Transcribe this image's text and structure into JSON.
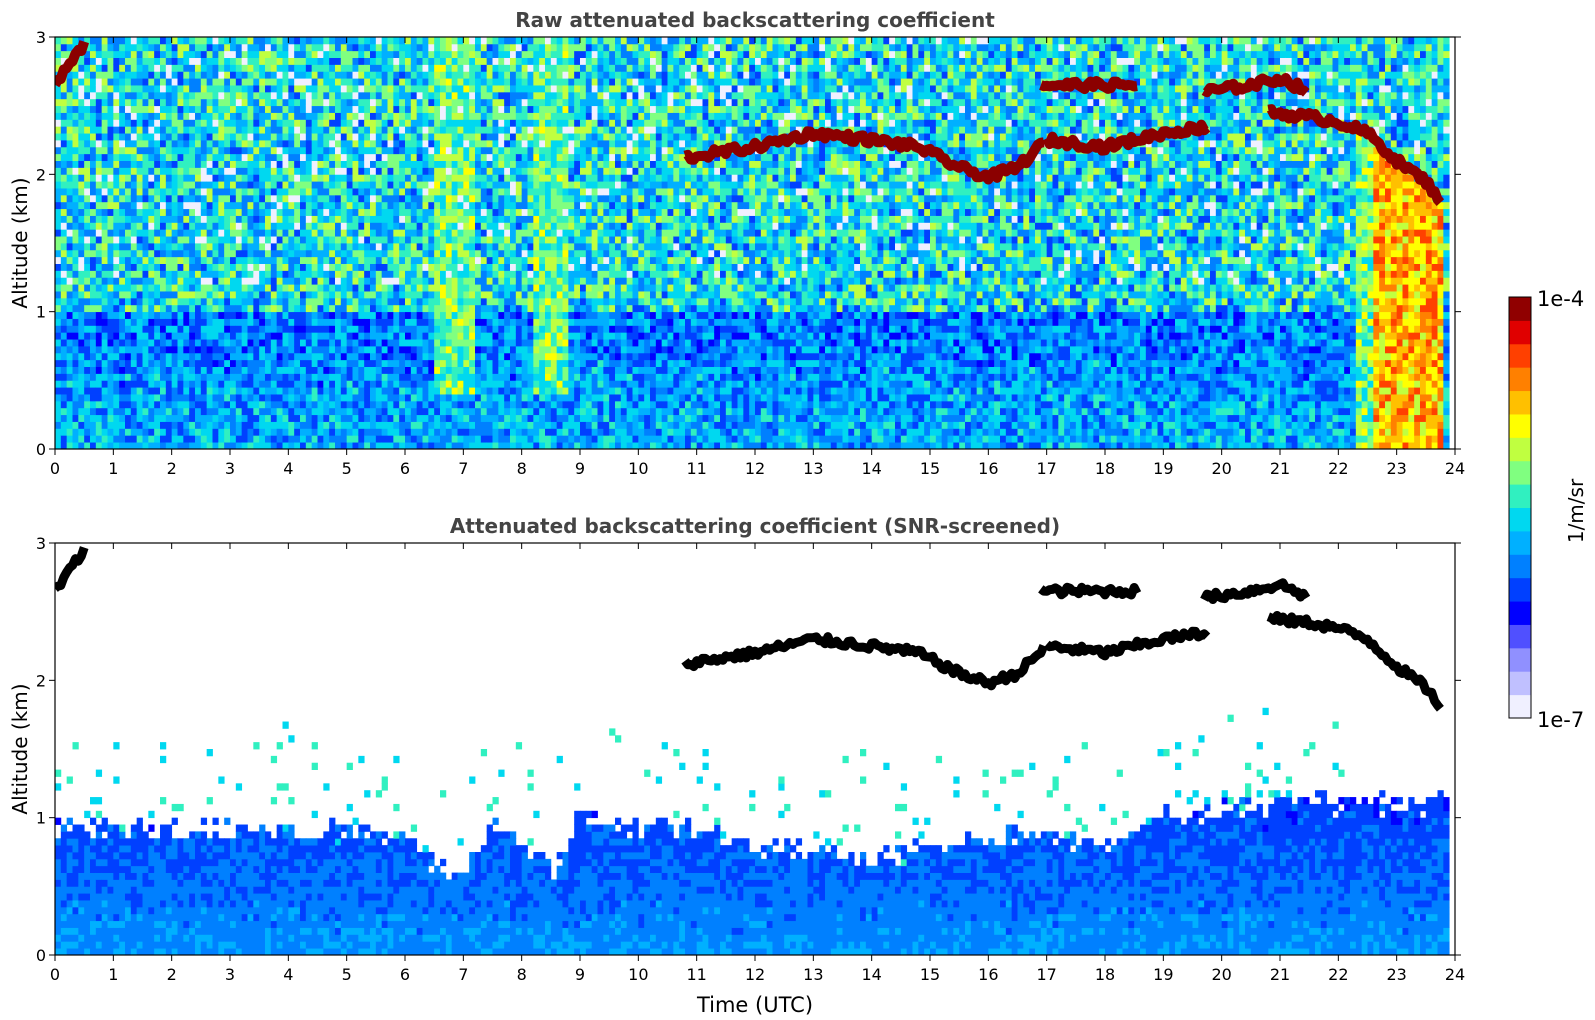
{
  "chart_data": [
    {
      "type": "heatmap",
      "title": "Raw attenuated backscattering coefficient",
      "xlabel": "",
      "ylabel": "Altitude (km)",
      "xlim": [
        0,
        24
      ],
      "ylim": [
        0,
        3
      ],
      "xticks": [
        "0",
        "1",
        "2",
        "3",
        "4",
        "5",
        "6",
        "7",
        "8",
        "9",
        "10",
        "11",
        "12",
        "13",
        "14",
        "15",
        "16",
        "17",
        "18",
        "19",
        "20",
        "21",
        "22",
        "23",
        "24"
      ],
      "yticks": [
        "0",
        "1",
        "2",
        "3"
      ],
      "screened": false,
      "cloud_layers": [
        {
          "t": [
            0.0,
            0.5
          ],
          "alt_start": 2.65,
          "alt_end": 2.95
        },
        {
          "t": [
            10.8,
            17.0
          ],
          "alt_profile": [
            [
              10.8,
              2.12
            ],
            [
              12.0,
              2.2
            ],
            [
              13.0,
              2.3
            ],
            [
              14.0,
              2.25
            ],
            [
              14.8,
              2.2
            ],
            [
              15.5,
              2.05
            ],
            [
              16.0,
              1.98
            ],
            [
              16.5,
              2.05
            ],
            [
              17.0,
              2.25
            ]
          ]
        },
        {
          "t": [
            17.0,
            19.8
          ],
          "alt_profile": [
            [
              17.0,
              2.25
            ],
            [
              18.0,
              2.2
            ],
            [
              18.5,
              2.25
            ],
            [
              19.0,
              2.3
            ],
            [
              19.8,
              2.35
            ]
          ]
        },
        {
          "t": [
            16.9,
            18.6
          ],
          "alt_profile": [
            [
              16.9,
              2.65
            ],
            [
              18.6,
              2.65
            ]
          ]
        },
        {
          "t": [
            19.7,
            21.5
          ],
          "alt_profile": [
            [
              19.7,
              2.6
            ],
            [
              20.5,
              2.65
            ],
            [
              21.0,
              2.7
            ],
            [
              21.5,
              2.6
            ]
          ]
        },
        {
          "t": [
            20.8,
            23.8
          ],
          "alt_profile": [
            [
              20.8,
              2.45
            ],
            [
              21.5,
              2.42
            ],
            [
              22.0,
              2.38
            ],
            [
              22.5,
              2.3
            ],
            [
              23.0,
              2.1
            ],
            [
              23.5,
              1.95
            ],
            [
              23.8,
              1.78
            ]
          ]
        }
      ],
      "precip_band": {
        "t": [
          22.3,
          23.8
        ],
        "intensity": "high"
      },
      "noise_zones": [
        [
          6.5,
          7.2
        ],
        [
          8.2,
          8.8
        ]
      ]
    },
    {
      "type": "heatmap",
      "title": "Attenuated backscattering coefficient (SNR-screened)",
      "xlabel": "Time (UTC)",
      "ylabel": "Altitude (km)",
      "xlim": [
        0,
        24
      ],
      "ylim": [
        0,
        3
      ],
      "xticks": [
        "0",
        "1",
        "2",
        "3",
        "4",
        "5",
        "6",
        "7",
        "8",
        "9",
        "10",
        "11",
        "12",
        "13",
        "14",
        "15",
        "16",
        "17",
        "18",
        "19",
        "20",
        "21",
        "22",
        "23",
        "24"
      ],
      "yticks": [
        "0",
        "1",
        "2",
        "3"
      ],
      "screened": true,
      "boundary_layer_top_km": [
        [
          0,
          0.95
        ],
        [
          2,
          0.92
        ],
        [
          4,
          0.9
        ],
        [
          6,
          0.88
        ],
        [
          6.6,
          0.65
        ],
        [
          7.0,
          0.6
        ],
        [
          7.5,
          0.95
        ],
        [
          8.0,
          0.8
        ],
        [
          8.6,
          0.6
        ],
        [
          9.0,
          1.0
        ],
        [
          10,
          0.95
        ],
        [
          11,
          0.9
        ],
        [
          12,
          0.8
        ],
        [
          13,
          0.75
        ],
        [
          14,
          0.7
        ],
        [
          15,
          0.8
        ],
        [
          16,
          0.85
        ],
        [
          17,
          0.9
        ],
        [
          18,
          0.8
        ],
        [
          19,
          1.0
        ],
        [
          20,
          1.05
        ],
        [
          21,
          1.1
        ],
        [
          22,
          1.1
        ]
      ]
    }
  ],
  "colorbar": {
    "max_label": "1e-4",
    "min_label": "1e-7",
    "unit_label": "1/m/sr",
    "colors": [
      "#f0f0ff",
      "#c0c0ff",
      "#9090ff",
      "#5050ff",
      "#0000ff",
      "#0040ff",
      "#0080ff",
      "#00b0ff",
      "#00d8f0",
      "#30f0c0",
      "#80ff80",
      "#c0ff40",
      "#ffff00",
      "#ffc000",
      "#ff8000",
      "#ff4000",
      "#e00000",
      "#900000"
    ]
  }
}
